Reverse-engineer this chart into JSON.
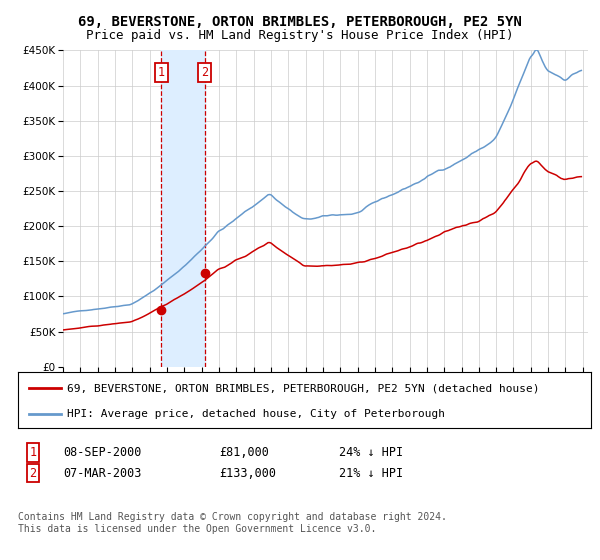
{
  "title": "69, BEVERSTONE, ORTON BRIMBLES, PETERBOROUGH, PE2 5YN",
  "subtitle": "Price paid vs. HM Land Registry's House Price Index (HPI)",
  "legend_red": "69, BEVERSTONE, ORTON BRIMBLES, PETERBOROUGH, PE2 5YN (detached house)",
  "legend_blue": "HPI: Average price, detached house, City of Peterborough",
  "transaction1_date": "08-SEP-2000",
  "transaction1_price": "£81,000",
  "transaction1_hpi": "24% ↓ HPI",
  "transaction2_date": "07-MAR-2003",
  "transaction2_price": "£133,000",
  "transaction2_hpi": "21% ↓ HPI",
  "footer": "Contains HM Land Registry data © Crown copyright and database right 2024.\nThis data is licensed under the Open Government Licence v3.0.",
  "ylim": [
    0,
    450000
  ],
  "yticks": [
    0,
    50000,
    100000,
    150000,
    200000,
    250000,
    300000,
    350000,
    400000,
    450000
  ],
  "transaction1_x": 2000.67,
  "transaction2_x": 2003.17,
  "bg_color": "#ffffff",
  "grid_color": "#cccccc",
  "red_color": "#cc0000",
  "blue_color": "#6699cc",
  "shade_color": "#ddeeff",
  "marker_color": "#cc0000",
  "box_color": "#cc0000",
  "title_fontsize": 10,
  "subtitle_fontsize": 9,
  "tick_fontsize": 7.5,
  "legend_fontsize": 8,
  "table_fontsize": 8.5,
  "footer_fontsize": 7
}
